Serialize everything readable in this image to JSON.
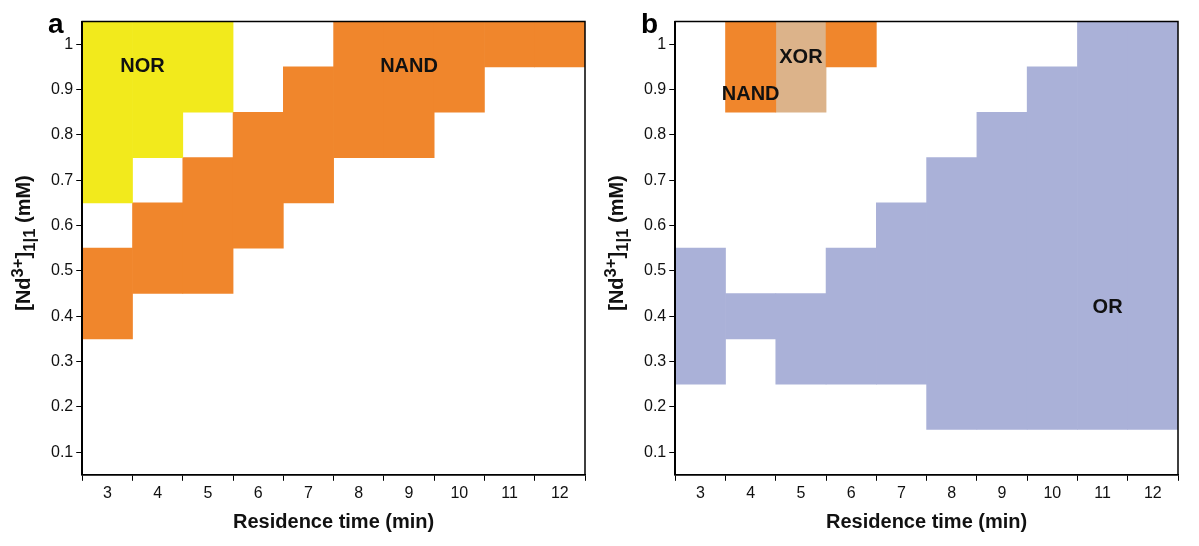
{
  "chart_data": [
    {
      "type": "bar",
      "title": "a",
      "xlabel": "Residence time (min)",
      "ylabel": "[Nd$^{3+}$]$_{1|1}$ (mM)",
      "categories": [
        "3",
        "4",
        "5",
        "6",
        "7",
        "8",
        "9",
        "10",
        "11",
        "12"
      ],
      "ylim": [
        0.05,
        1.05
      ],
      "yticks": [
        0.1,
        0.2,
        0.3,
        0.4,
        0.5,
        0.6,
        0.7,
        0.8,
        0.9,
        1
      ],
      "series": [
        {
          "name": "NOR",
          "color": "#f2ea1c",
          "base": [
            0.65,
            0.75,
            0.85,
            null,
            null,
            null,
            null,
            null,
            null,
            null
          ],
          "values": [
            0.4,
            0.3,
            0.2,
            null,
            null,
            null,
            null,
            null,
            null,
            null
          ]
        },
        {
          "name": "NAND",
          "color": "#f0862c",
          "base": [
            0.35,
            0.45,
            0.45,
            0.55,
            0.65,
            0.75,
            0.75,
            0.85,
            0.95,
            0.95
          ],
          "values": [
            0.2,
            0.2,
            0.3,
            0.3,
            0.3,
            0.3,
            0.3,
            0.2,
            0.1,
            0.1
          ]
        }
      ]
    },
    {
      "type": "bar",
      "title": "b",
      "xlabel": "Residence time (min)",
      "ylabel": "[Nd$^{3+}$]$_{1|1}$ (mM)",
      "categories": [
        "3",
        "4",
        "5",
        "6",
        "7",
        "8",
        "9",
        "10",
        "11",
        "12"
      ],
      "ylim": [
        0.05,
        1.05
      ],
      "yticks": [
        0.1,
        0.2,
        0.3,
        0.4,
        0.5,
        0.6,
        0.7,
        0.8,
        0.9,
        1
      ],
      "series": [
        {
          "name": "NAND",
          "color": "#f0862c",
          "base": [
            null,
            0.85,
            null,
            0.95,
            null,
            null,
            null,
            null,
            null,
            null
          ],
          "values": [
            null,
            0.2,
            null,
            0.1,
            null,
            null,
            null,
            null,
            null,
            null
          ]
        },
        {
          "name": "XOR",
          "color": "#dcb38a",
          "base": [
            null,
            null,
            0.85,
            null,
            null,
            null,
            null,
            null,
            null,
            null
          ],
          "values": [
            null,
            null,
            0.2,
            null,
            null,
            null,
            null,
            null,
            null,
            null
          ]
        },
        {
          "name": "OR",
          "color": "#aab1d8",
          "base": [
            0.25,
            0.35,
            0.25,
            0.25,
            0.25,
            0.15,
            0.15,
            0.15,
            0.15,
            0.15
          ],
          "values": [
            0.3,
            0.1,
            0.2,
            0.3,
            0.4,
            0.6,
            0.7,
            0.8,
            0.9,
            0.9
          ]
        }
      ]
    }
  ]
}
